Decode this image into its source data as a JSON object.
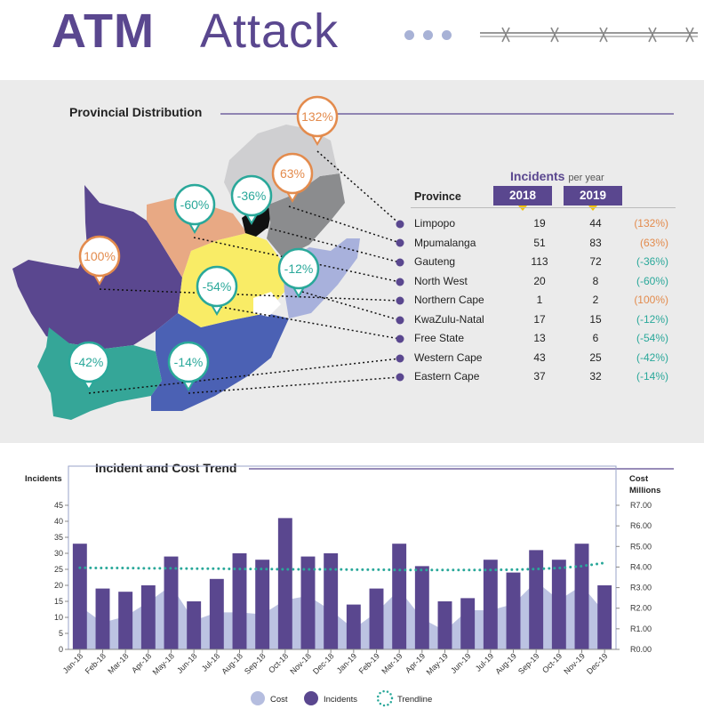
{
  "header": {
    "title_strong": "ATM",
    "title_light": "Attack"
  },
  "colors": {
    "purple": "#5a478f",
    "cost_fill": "#b5bddf",
    "trend": "#2aa89a",
    "increase": "#e38b4d",
    "decrease": "#2aa89a"
  },
  "map": {
    "title": "Provincial Distribution",
    "bubbles": [
      "132%",
      "63%",
      "-36%",
      "-60%",
      "100%",
      "-12%",
      "-54%",
      "-42%",
      "-14%"
    ]
  },
  "table": {
    "heading": "Incidents",
    "heading_sub": "per year",
    "col_province": "Province",
    "col_2018": "2018",
    "col_2019": "2019",
    "rows": [
      {
        "province": "Limpopo",
        "v2018": "19",
        "v2019": "44",
        "change": "(132%)",
        "trend": "up"
      },
      {
        "province": "Mpumalanga",
        "v2018": "51",
        "v2019": "83",
        "change": "(63%)",
        "trend": "up"
      },
      {
        "province": "Gauteng",
        "v2018": "113",
        "v2019": "72",
        "change": "(-36%)",
        "trend": "down"
      },
      {
        "province": "North West",
        "v2018": "20",
        "v2019": "8",
        "change": "(-60%)",
        "trend": "down"
      },
      {
        "province": "Northern Cape",
        "v2018": "1",
        "v2019": "2",
        "change": "(100%)",
        "trend": "up"
      },
      {
        "province": "KwaZulu-Natal",
        "v2018": "17",
        "v2019": "15",
        "change": "(-12%)",
        "trend": "down"
      },
      {
        "province": "Free State",
        "v2018": "13",
        "v2019": "6",
        "change": "(-54%)",
        "trend": "down"
      },
      {
        "province": "Western Cape",
        "v2018": "43",
        "v2019": "25",
        "change": "(-42%)",
        "trend": "down"
      },
      {
        "province": "Eastern Cape",
        "v2018": "37",
        "v2019": "32",
        "change": "(-14%)",
        "trend": "down"
      }
    ]
  },
  "chart_data": {
    "type": "bar",
    "title": "Incident and Cost Trend",
    "ylabel": "Incidents",
    "y2label_line1": "Cost",
    "y2label_line2": "Millions",
    "ylim": [
      0,
      45
    ],
    "y2lim": [
      0,
      7
    ],
    "yticks": [
      "0",
      "5",
      "10",
      "15",
      "20",
      "25",
      "30",
      "35",
      "40",
      "45"
    ],
    "y2ticks": [
      "R0.00",
      "R1.00",
      "R2.00",
      "R3.00",
      "R4.00",
      "R5.00",
      "R6.00",
      "R7.00"
    ],
    "categories": [
      "Jan-18",
      "Feb-18",
      "Mar-18",
      "Apr-18",
      "May-18",
      "Jun-18",
      "Jul-18",
      "Aug-18",
      "Sep-18",
      "Oct-18",
      "Nov-18",
      "Dec-18",
      "Jan-19",
      "Feb-19",
      "Mar-19",
      "Apr-19",
      "May-19",
      "Jun-19",
      "Jul-19",
      "Aug-19",
      "Sep-19",
      "Oct-19",
      "Nov-19",
      "Dec-19"
    ],
    "series": [
      {
        "name": "Incidents",
        "kind": "bar",
        "values": [
          33,
          19,
          18,
          20,
          29,
          15,
          22,
          30,
          28,
          41,
          29,
          30,
          14,
          19,
          33,
          26,
          15,
          16,
          28,
          24,
          31,
          28,
          33,
          20
        ]
      },
      {
        "name": "Cost",
        "kind": "area",
        "axis": "right",
        "values": [
          2.1,
          1.3,
          1.6,
          2.3,
          3.1,
          1.4,
          1.8,
          1.8,
          1.7,
          2.4,
          2.6,
          1.9,
          1.0,
          1.8,
          2.9,
          1.5,
          0.9,
          1.9,
          1.9,
          2.2,
          3.3,
          2.4,
          3.1,
          1.8
        ]
      },
      {
        "name": "Trendline",
        "kind": "dotted-line",
        "axis": "left",
        "values": [
          25.5,
          25.4,
          25.4,
          25.3,
          25.3,
          25.2,
          25.2,
          25.1,
          25.1,
          25.0,
          25.0,
          25.0,
          24.9,
          24.9,
          24.8,
          24.8,
          24.8,
          24.8,
          24.8,
          24.9,
          25.1,
          25.4,
          26.0,
          27.0
        ]
      }
    ],
    "legend": [
      "Cost",
      "Incidents",
      "Trendline"
    ],
    "legend_position": "bottom"
  }
}
